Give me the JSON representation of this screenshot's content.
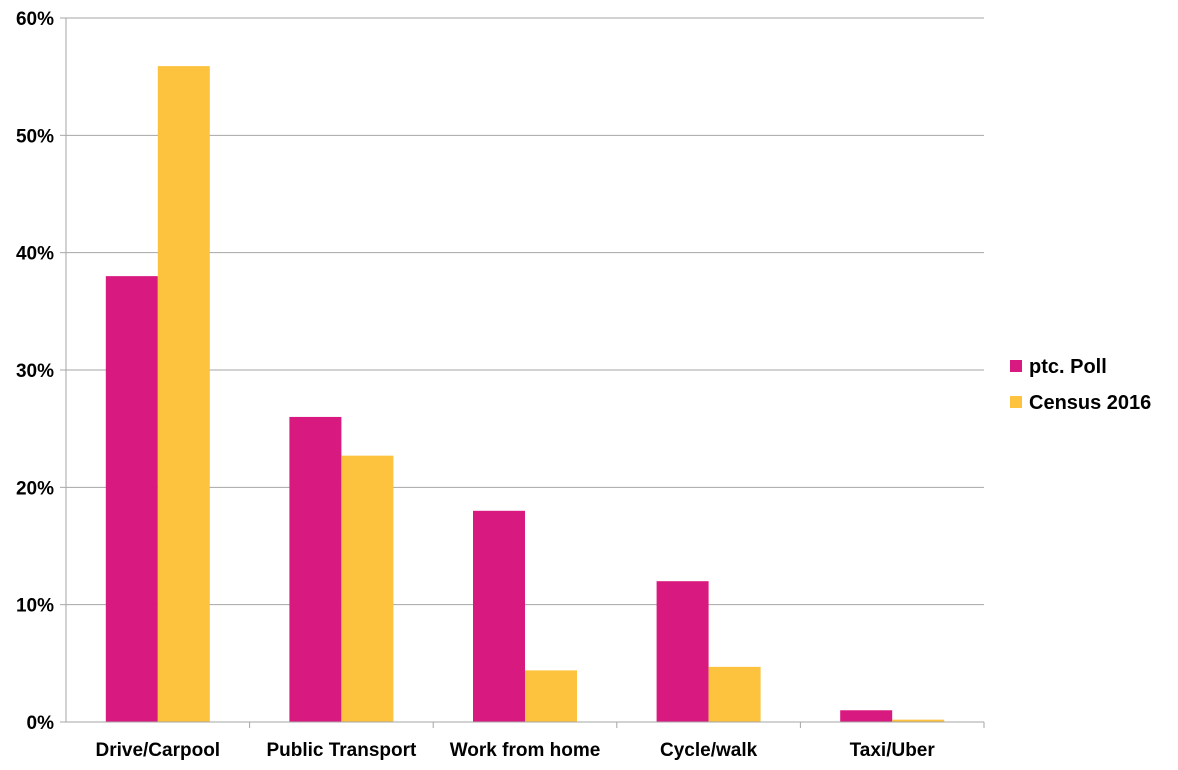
{
  "chart_data": {
    "type": "bar",
    "categories": [
      "Drive/Carpool",
      "Public Transport",
      "Work from home",
      "Cycle/walk",
      "Taxi/Uber"
    ],
    "series": [
      {
        "name": "ptc. Poll",
        "color": "#d8197f",
        "values": [
          38,
          26,
          18,
          12,
          1
        ]
      },
      {
        "name": "Census 2016",
        "color": "#fdc23e",
        "values": [
          55.9,
          22.7,
          4.4,
          4.7,
          0.2
        ]
      }
    ],
    "ylim": [
      0,
      60
    ],
    "yticks": [
      0,
      10,
      20,
      30,
      40,
      50,
      60
    ],
    "ytick_labels": [
      "0%",
      "10%",
      "20%",
      "30%",
      "40%",
      "50%",
      "60%"
    ],
    "grid": true,
    "legend_position": "right",
    "xlabel": "",
    "ylabel": ""
  }
}
